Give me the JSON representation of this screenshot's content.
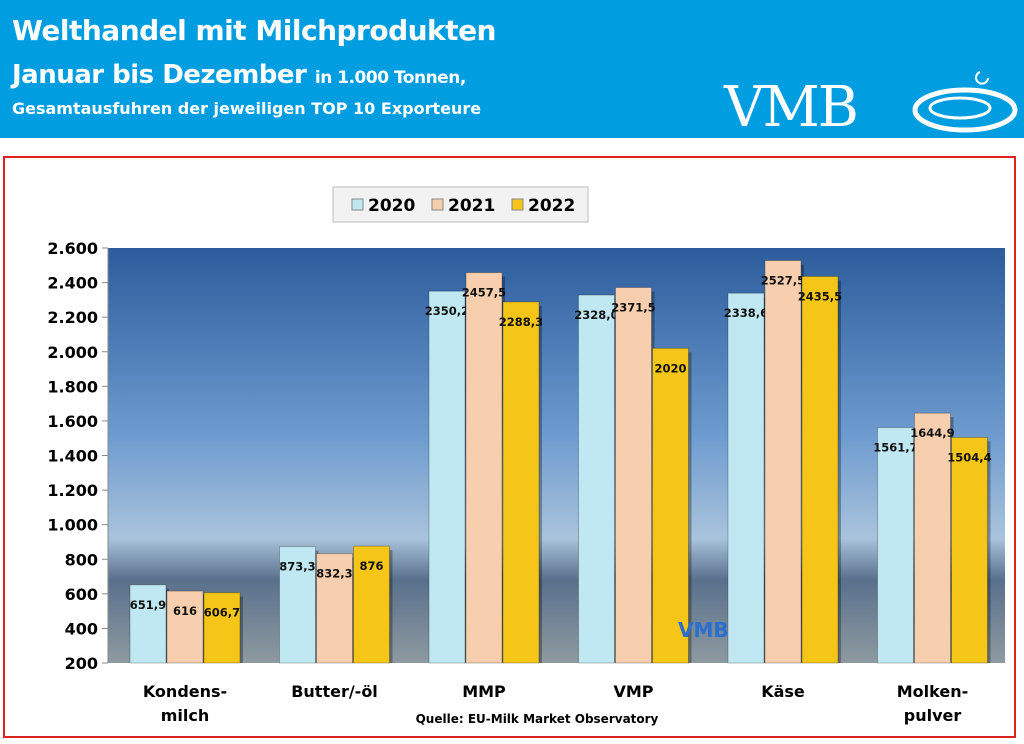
{
  "header": {
    "title": "Welthandel mit Milchprodukten",
    "subtitle_main": "Januar bis Dezember",
    "subtitle_unit": "in 1.000 Tonnen,",
    "subtitle_detail": "Gesamtausfuhren der jeweiligen TOP 10 Exporteure",
    "logo": "VMB"
  },
  "chart_data": {
    "type": "bar",
    "categories": [
      "Kondens-\nmilch",
      "Butter/-öl",
      "MMP",
      "VMP",
      "Käse",
      "Molken-\npulver"
    ],
    "series": [
      {
        "name": "2020",
        "values": [
          651.9,
          873.3,
          2350.2,
          2328.0,
          2338.6,
          1561.7
        ],
        "labels": [
          "651,9",
          "873,3",
          "2350,2",
          "2328,0",
          "2338,6",
          "1561,7"
        ],
        "color": "#bfe8f2"
      },
      {
        "name": "2021",
        "values": [
          616,
          832.3,
          2457.5,
          2371.5,
          2527.5,
          1644.9
        ],
        "labels": [
          "616",
          "832,3",
          "2457,5",
          "2371,5",
          "2527,5",
          "1644,9"
        ],
        "color": "#f8cfae"
      },
      {
        "name": "2022",
        "values": [
          606.7,
          876,
          2288.3,
          2020,
          2435.5,
          1504.4
        ],
        "labels": [
          "606,7",
          "876",
          "2288,3",
          "2020",
          "2435,5",
          "1504,4"
        ],
        "color": "#f5c518"
      }
    ],
    "ylim": [
      200,
      2600
    ],
    "yticks": [
      "200",
      "400",
      "600",
      "800",
      "1.000",
      "1.200",
      "1.400",
      "1.600",
      "1.800",
      "2.000",
      "2.200",
      "2.400",
      "2.600"
    ],
    "legend_position": "top-center",
    "grid": false,
    "source": "Quelle: EU-Milk Market Observatory",
    "watermark": "VMB"
  }
}
